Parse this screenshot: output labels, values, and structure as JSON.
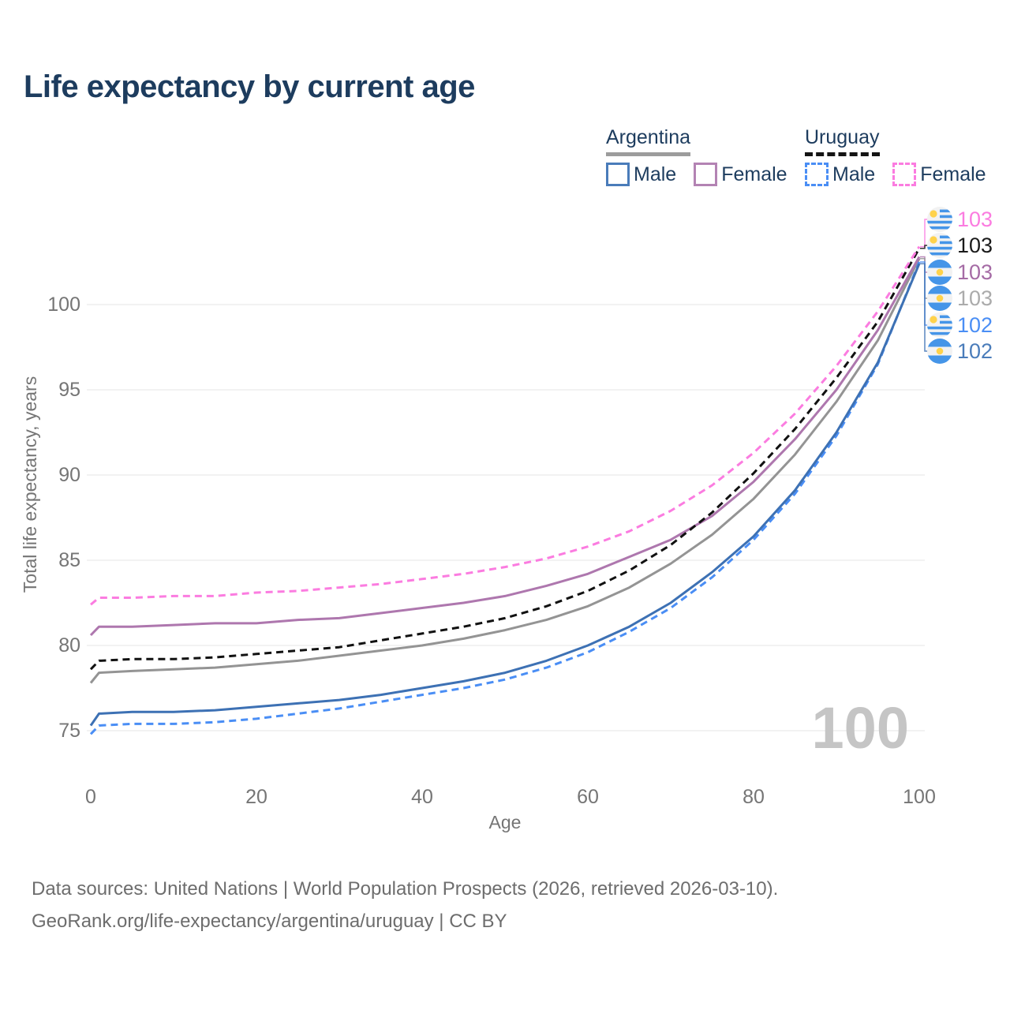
{
  "title": "Life expectancy by current age",
  "legend": {
    "groups": [
      {
        "label": "Argentina",
        "line_style": "solid",
        "underline_color": "#9c9c9c",
        "items": [
          {
            "label": "Male",
            "color": "#4a7cba",
            "style": "solid"
          },
          {
            "label": "Female",
            "color": "#b383b3",
            "style": "solid"
          }
        ]
      },
      {
        "label": "Uruguay",
        "line_style": "dashed",
        "underline_color": "#141414",
        "items": [
          {
            "label": "Male",
            "color": "#4a8ef5",
            "style": "dashed"
          },
          {
            "label": "Female",
            "color": "#fb7ce0",
            "style": "dashed"
          }
        ]
      }
    ]
  },
  "watermark": "100",
  "footer": {
    "line1": "Data sources: United Nations | World Population Prospects (2026, retrieved 2026-03-10).",
    "line2": "GeoRank.org/life-expectancy/argentina/uruguay | CC BY"
  },
  "chart_data": {
    "type": "line",
    "title": "Life expectancy by current age",
    "xlabel": "Age",
    "ylabel": "Total life expectancy, years",
    "x_ticks": [
      0,
      20,
      40,
      60,
      80,
      100
    ],
    "y_ticks": [
      75,
      80,
      85,
      90,
      95,
      100
    ],
    "xlim": [
      0,
      100
    ],
    "ylim": [
      73.5,
      104.5
    ],
    "grid": "horizontal-only",
    "legend_position": "top-right",
    "x": [
      0,
      1,
      5,
      10,
      15,
      20,
      25,
      30,
      35,
      40,
      45,
      50,
      55,
      60,
      65,
      70,
      75,
      80,
      85,
      90,
      95,
      100
    ],
    "series": [
      {
        "name": "Uruguay Female",
        "country": "Uruguay",
        "sex": "female",
        "color": "#fb7ce0",
        "line_style": "dashed",
        "end_label": "103",
        "end_label_color": "#fb7ce0",
        "flag": "uruguay",
        "values": [
          82.4,
          82.8,
          82.8,
          82.9,
          82.9,
          83.1,
          83.2,
          83.4,
          83.6,
          83.9,
          84.2,
          84.6,
          85.1,
          85.8,
          86.7,
          87.9,
          89.4,
          91.3,
          93.6,
          96.4,
          99.6,
          103.4
        ]
      },
      {
        "name": "Uruguay",
        "country": "Uruguay",
        "sex": "both",
        "color": "#111111",
        "line_style": "dashed",
        "end_label": "103",
        "end_label_color": "#1a1a1a",
        "flag": "uruguay",
        "values": [
          78.6,
          79.1,
          79.2,
          79.2,
          79.3,
          79.5,
          79.7,
          79.9,
          80.3,
          80.7,
          81.1,
          81.6,
          82.3,
          83.2,
          84.4,
          85.9,
          87.8,
          90.1,
          92.7,
          95.7,
          99.0,
          103.3
        ]
      },
      {
        "name": "Argentina Female",
        "country": "Argentina",
        "sex": "female",
        "color": "#ae77ae",
        "line_style": "solid",
        "end_label": "103",
        "end_label_color": "#a56ba5",
        "flag": "argentina",
        "values": [
          80.6,
          81.1,
          81.1,
          81.2,
          81.3,
          81.3,
          81.5,
          81.6,
          81.9,
          82.2,
          82.5,
          82.9,
          83.5,
          84.2,
          85.2,
          86.2,
          87.6,
          89.6,
          92.1,
          95.0,
          98.5,
          102.8
        ]
      },
      {
        "name": "Argentina",
        "country": "Argentina",
        "sex": "both",
        "color": "#949494",
        "line_style": "solid",
        "end_label": "103",
        "end_label_color": "#ababab",
        "flag": "argentina",
        "values": [
          77.8,
          78.4,
          78.5,
          78.6,
          78.7,
          78.9,
          79.1,
          79.4,
          79.7,
          80.0,
          80.4,
          80.9,
          81.5,
          82.3,
          83.4,
          84.8,
          86.5,
          88.6,
          91.2,
          94.3,
          97.9,
          102.7
        ]
      },
      {
        "name": "Uruguay Male",
        "country": "Uruguay",
        "sex": "male",
        "color": "#4a8ef5",
        "line_style": "dashed",
        "end_label": "102",
        "end_label_color": "#4a8ef5",
        "flag": "uruguay",
        "values": [
          74.8,
          75.3,
          75.4,
          75.4,
          75.5,
          75.7,
          76.0,
          76.3,
          76.7,
          77.1,
          77.5,
          78.0,
          78.7,
          79.6,
          80.8,
          82.2,
          84.0,
          86.2,
          88.9,
          92.3,
          96.5,
          102.5
        ]
      },
      {
        "name": "Argentina Male",
        "country": "Argentina",
        "sex": "male",
        "color": "#3d71b4",
        "line_style": "solid",
        "end_label": "102",
        "end_label_color": "#4a7cba",
        "flag": "argentina",
        "values": [
          75.3,
          76.0,
          76.1,
          76.1,
          76.2,
          76.4,
          76.6,
          76.8,
          77.1,
          77.5,
          77.9,
          78.4,
          79.1,
          80.0,
          81.1,
          82.5,
          84.3,
          86.4,
          89.1,
          92.5,
          96.6,
          102.4
        ]
      }
    ]
  }
}
